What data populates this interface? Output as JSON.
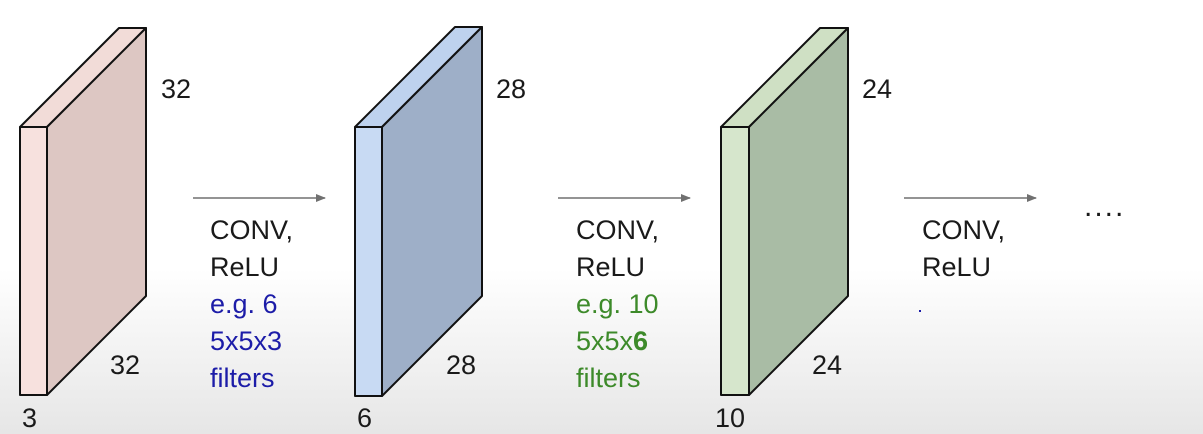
{
  "volumes": [
    {
      "height_label": "32",
      "width_label": "32",
      "depth_label": "3",
      "front_color": "#f7e1de",
      "side_color": "#ddc7c3"
    },
    {
      "height_label": "28",
      "width_label": "28",
      "depth_label": "6",
      "front_color": "#c8daf3",
      "side_color": "#9eafc8"
    },
    {
      "height_label": "24",
      "width_label": "24",
      "depth_label": "10",
      "front_color": "#d6e6cc",
      "side_color": "#a9bca5"
    }
  ],
  "operations": [
    {
      "line1": "CONV,",
      "line2": "ReLU",
      "example": "e.g. 6",
      "filter_prefix": "5x5x3",
      "filter_bold": "",
      "filter_word": "filters",
      "color": "#1c1ca8"
    },
    {
      "line1": "CONV,",
      "line2": "ReLU",
      "example": "e.g. 10",
      "filter_prefix": "5x5x",
      "filter_bold": "6",
      "filter_word": "filters",
      "color": "#3d8a2a"
    },
    {
      "line1": "CONV,",
      "line2": "ReLU"
    }
  ],
  "continuation": "...."
}
